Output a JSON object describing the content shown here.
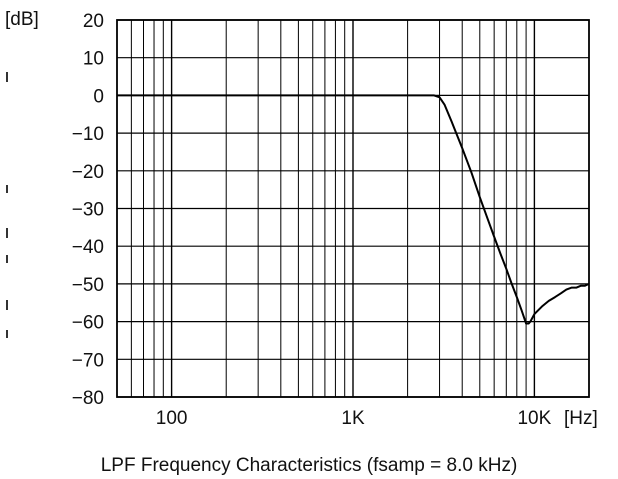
{
  "chart_data": {
    "type": "line",
    "title": "",
    "caption": "LPF Frequency Characteristics (fsamp = 8.0 kHz)",
    "xlabel": "[Hz]",
    "ylabel": "[dB]",
    "x_scale": "log",
    "xlim": [
      50,
      20000
    ],
    "ylim": [
      -80,
      20
    ],
    "grid": true,
    "x_ticks": [
      {
        "value": 100,
        "label": "100"
      },
      {
        "value": 1000,
        "label": "1K"
      },
      {
        "value": 10000,
        "label": "10K"
      }
    ],
    "y_ticks": [
      {
        "value": 20,
        "label": "20"
      },
      {
        "value": 10,
        "label": "10"
      },
      {
        "value": 0,
        "label": "0"
      },
      {
        "value": -10,
        "label": "−10"
      },
      {
        "value": -20,
        "label": "−20"
      },
      {
        "value": -30,
        "label": "−30"
      },
      {
        "value": -40,
        "label": "−40"
      },
      {
        "value": -50,
        "label": "−50"
      },
      {
        "value": -60,
        "label": "−60"
      },
      {
        "value": -70,
        "label": "−70"
      },
      {
        "value": -80,
        "label": "−80"
      }
    ],
    "series": [
      {
        "color": "#000000",
        "x": [
          50,
          1000,
          2800,
          3000,
          3200,
          3500,
          4000,
          4500,
          5000,
          5500,
          6000,
          6500,
          7000,
          7500,
          8000,
          8500,
          9000,
          9300,
          9500,
          10000,
          11000,
          12000,
          13000,
          14000,
          15000,
          16000,
          17000,
          18000,
          19000,
          20000
        ],
        "y": [
          0,
          0,
          0,
          -0.5,
          -2.5,
          -7,
          -14,
          -20.5,
          -27,
          -32.5,
          -37.5,
          -42,
          -46,
          -50,
          -53.5,
          -57,
          -60.5,
          -60.5,
          -60,
          -58,
          -56,
          -54.5,
          -53.5,
          -52.5,
          -51.5,
          -51,
          -51,
          -50.5,
          -50.5,
          -50
        ]
      }
    ]
  }
}
